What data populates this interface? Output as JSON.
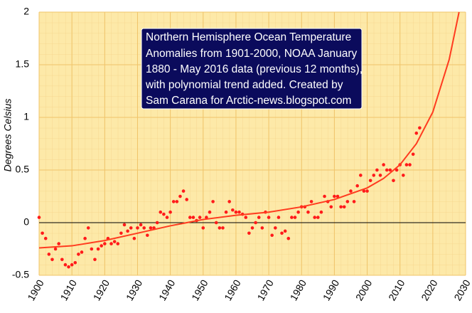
{
  "chart_data": {
    "type": "scatter",
    "annotation": [
      "Northern Hemisphere Ocean Temperature",
      "Anomalies from 1901-2000, NOAA January",
      "1880 - May 2016 data (previous 12 months),",
      "with polynomial trend added.   Created by",
      "Sam Carana for Arctic-news.blogspot.com"
    ],
    "y_label": "Degrees Celsius",
    "xlim": [
      1900,
      2030
    ],
    "xticks": [
      1900,
      1910,
      1920,
      1930,
      1940,
      1950,
      1960,
      1970,
      1980,
      1990,
      2000,
      2010,
      2020,
      2030
    ],
    "ylim": [
      -0.5,
      2
    ],
    "yticks": [
      -0.5,
      0,
      0.5,
      1,
      1.5,
      2
    ],
    "grid": true,
    "series": [
      {
        "type": "scatter",
        "color": "#ff1a1a",
        "x": [
          1900,
          1901,
          1902,
          1903,
          1904,
          1905,
          1906,
          1907,
          1908,
          1909,
          1910,
          1911,
          1912,
          1913,
          1914,
          1915,
          1916,
          1917,
          1918,
          1919,
          1920,
          1921,
          1922,
          1923,
          1924,
          1925,
          1926,
          1927,
          1928,
          1929,
          1930,
          1931,
          1932,
          1933,
          1934,
          1935,
          1936,
          1937,
          1938,
          1939,
          1940,
          1941,
          1942,
          1943,
          1944,
          1945,
          1946,
          1947,
          1948,
          1949,
          1950,
          1951,
          1952,
          1953,
          1954,
          1955,
          1956,
          1957,
          1958,
          1959,
          1960,
          1961,
          1962,
          1963,
          1964,
          1965,
          1966,
          1967,
          1968,
          1969,
          1970,
          1971,
          1972,
          1973,
          1974,
          1975,
          1976,
          1977,
          1978,
          1979,
          1980,
          1981,
          1982,
          1983,
          1984,
          1985,
          1986,
          1987,
          1988,
          1989,
          1990,
          1991,
          1992,
          1993,
          1994,
          1995,
          1996,
          1997,
          1998,
          1999,
          2000,
          2001,
          2002,
          2003,
          2004,
          2005,
          2006,
          2007,
          2008,
          2009,
          2010,
          2011,
          2012,
          2013,
          2014,
          2015,
          2016
        ],
        "values": [
          0.05,
          -0.1,
          -0.15,
          -0.3,
          -0.35,
          -0.25,
          -0.2,
          -0.35,
          -0.4,
          -0.42,
          -0.4,
          -0.38,
          -0.3,
          -0.28,
          -0.15,
          -0.05,
          -0.25,
          -0.35,
          -0.25,
          -0.22,
          -0.2,
          -0.15,
          -0.2,
          -0.18,
          -0.2,
          -0.1,
          -0.02,
          -0.08,
          -0.05,
          -0.15,
          -0.05,
          -0.02,
          -0.05,
          -0.12,
          -0.05,
          -0.05,
          0,
          0.1,
          0.08,
          0.05,
          0.1,
          0.2,
          0.2,
          0.25,
          0.3,
          0.22,
          0.05,
          0.05,
          0.02,
          0.05,
          -0.05,
          0.05,
          0.1,
          0.2,
          0,
          -0.05,
          -0.05,
          0.1,
          0.2,
          0.12,
          0.1,
          0.1,
          0.08,
          0.05,
          -0.1,
          -0.05,
          0,
          0.05,
          -0.05,
          0.1,
          0.05,
          -0.12,
          -0.05,
          0.05,
          -0.1,
          -0.08,
          -0.15,
          0.05,
          0.05,
          0.1,
          0.15,
          0.15,
          0.1,
          0.2,
          0.05,
          0.05,
          0.1,
          0.25,
          0.2,
          0.15,
          0.25,
          0.25,
          0.15,
          0.15,
          0.2,
          0.3,
          0.2,
          0.35,
          0.45,
          0.3,
          0.3,
          0.4,
          0.45,
          0.5,
          0.45,
          0.55,
          0.5,
          0.5,
          0.4,
          0.5,
          0.55,
          0.45,
          0.55,
          0.55,
          0.65,
          0.85,
          0.9
        ]
      },
      {
        "type": "line",
        "color": "#ff3b1f",
        "x": [
          1900,
          1910,
          1920,
          1930,
          1940,
          1950,
          1960,
          1970,
          1980,
          1990,
          2000,
          2005,
          2010,
          2015,
          2020,
          2025,
          2028
        ],
        "values": [
          -0.24,
          -0.22,
          -0.17,
          -0.1,
          -0.03,
          0.03,
          0.07,
          0.1,
          0.15,
          0.22,
          0.33,
          0.42,
          0.55,
          0.75,
          1.05,
          1.55,
          2.0
        ]
      }
    ]
  }
}
